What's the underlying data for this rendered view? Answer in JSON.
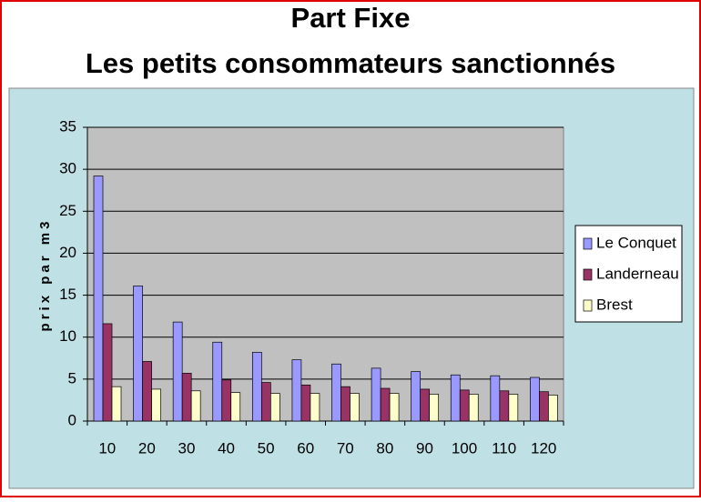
{
  "chart_data": {
    "type": "bar",
    "title": "Part Fixe",
    "subtitle": "Les petits consommateurs sanctionnés",
    "y_label": "prix par m3",
    "categories": [
      10,
      20,
      30,
      40,
      50,
      60,
      70,
      80,
      90,
      100,
      110,
      120
    ],
    "series": [
      {
        "name": "Le Conquet",
        "color": "#9999ff",
        "values": [
          29.2,
          16.1,
          11.8,
          9.4,
          8.2,
          7.3,
          6.8,
          6.3,
          5.9,
          5.5,
          5.4,
          5.2
        ]
      },
      {
        "name": "Landerneau",
        "color": "#993366",
        "values": [
          11.6,
          7.1,
          5.7,
          4.9,
          4.6,
          4.3,
          4.1,
          3.9,
          3.8,
          3.7,
          3.6,
          3.5
        ]
      },
      {
        "name": "Brest",
        "color": "#ffffcc",
        "values": [
          4.1,
          3.8,
          3.6,
          3.4,
          3.3,
          3.3,
          3.3,
          3.3,
          3.2,
          3.2,
          3.2,
          3.1
        ]
      }
    ],
    "ylim": [
      0,
      35
    ],
    "yticks": [
      0,
      5,
      10,
      15,
      20,
      25,
      30,
      35
    ],
    "grid": true,
    "legend": "right"
  }
}
